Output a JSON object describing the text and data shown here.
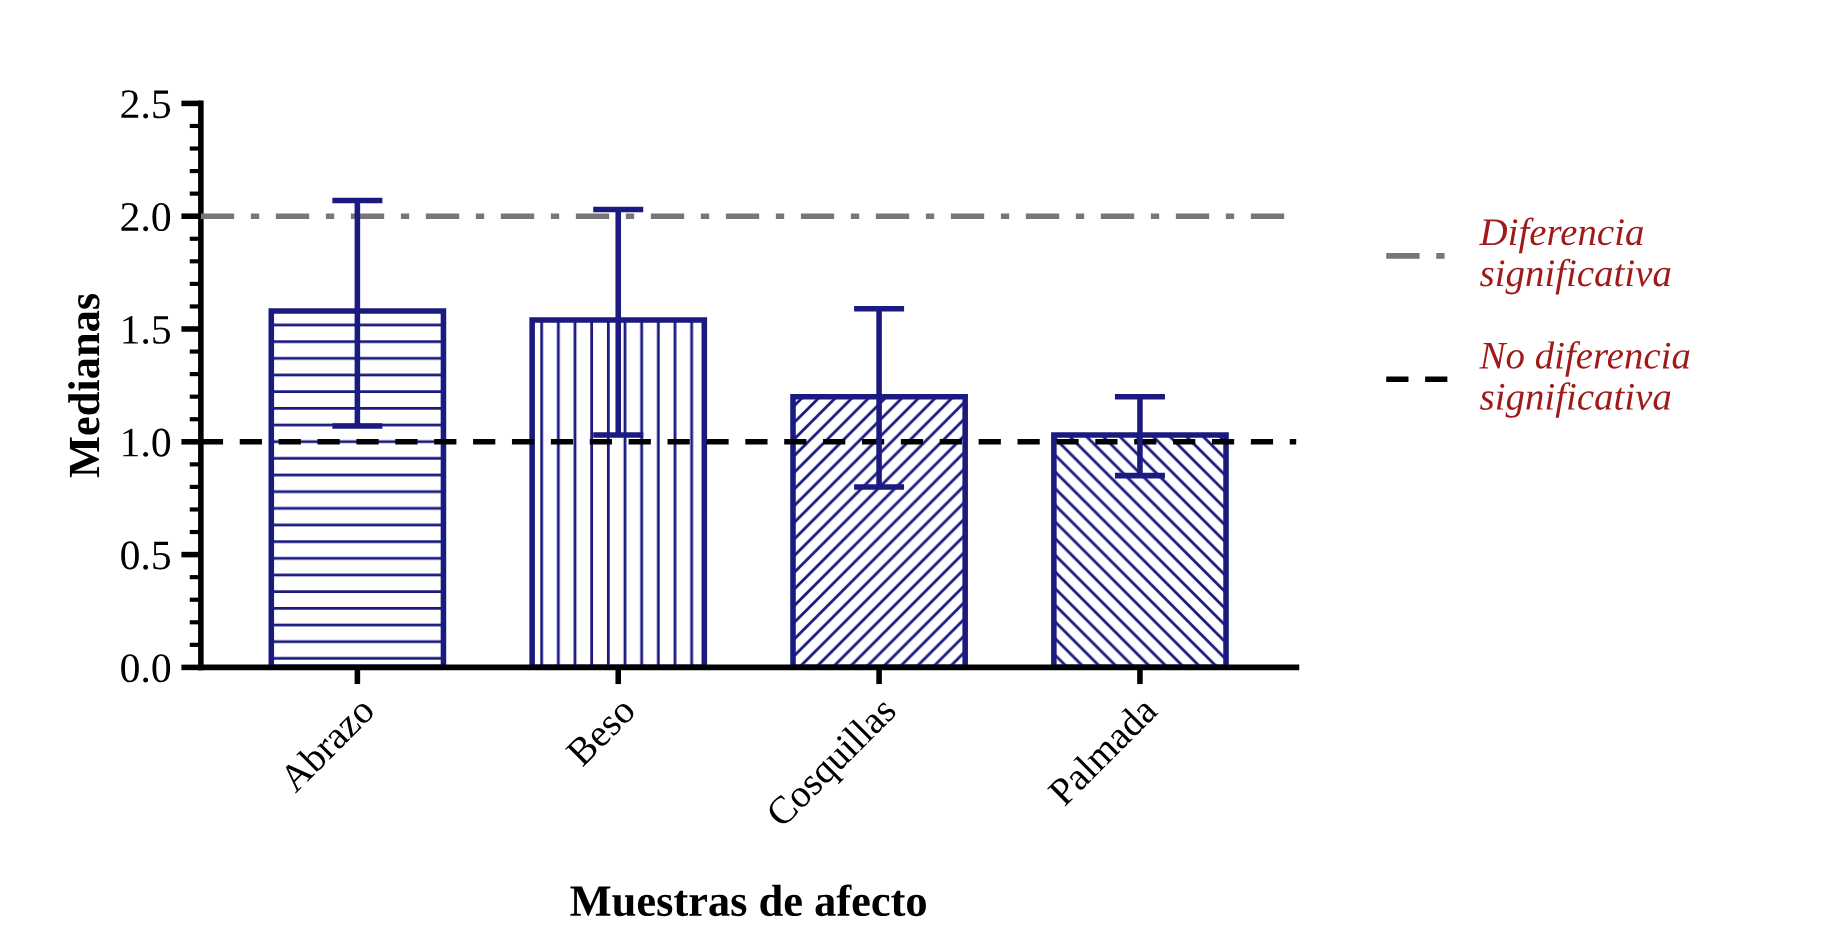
{
  "chart_data": {
    "type": "bar",
    "xlabel": "Muestras de afecto",
    "ylabel": "Medianas",
    "categories": [
      "Abrazo",
      "Beso",
      "Cosquillas",
      "Palmada"
    ],
    "values": [
      1.58,
      1.54,
      1.2,
      1.03
    ],
    "errors": [
      [
        1.07,
        2.07
      ],
      [
        1.03,
        2.03
      ],
      [
        0.8,
        1.59
      ],
      [
        0.85,
        1.2
      ]
    ],
    "color": "#1a1a80",
    "ylim": [
      0,
      2.5
    ],
    "yticks": [
      {
        "value": 0,
        "label": "0.0"
      },
      0.5,
      {
        "value": 1,
        "label": "1.0"
      },
      1.5,
      {
        "value": 2,
        "label": "2.0"
      },
      2.5
    ],
    "ref_lines": [
      {
        "axis": "y",
        "value": 2,
        "label": "Diferencia significativa",
        "color": "#777777",
        "line_style": "dashdot"
      },
      {
        "axis": "y",
        "value": 1,
        "label": "No diferencia significativa",
        "color": "#000000",
        "line_style": "dashed"
      }
    ],
    "legend": "right",
    "grid": false
  }
}
